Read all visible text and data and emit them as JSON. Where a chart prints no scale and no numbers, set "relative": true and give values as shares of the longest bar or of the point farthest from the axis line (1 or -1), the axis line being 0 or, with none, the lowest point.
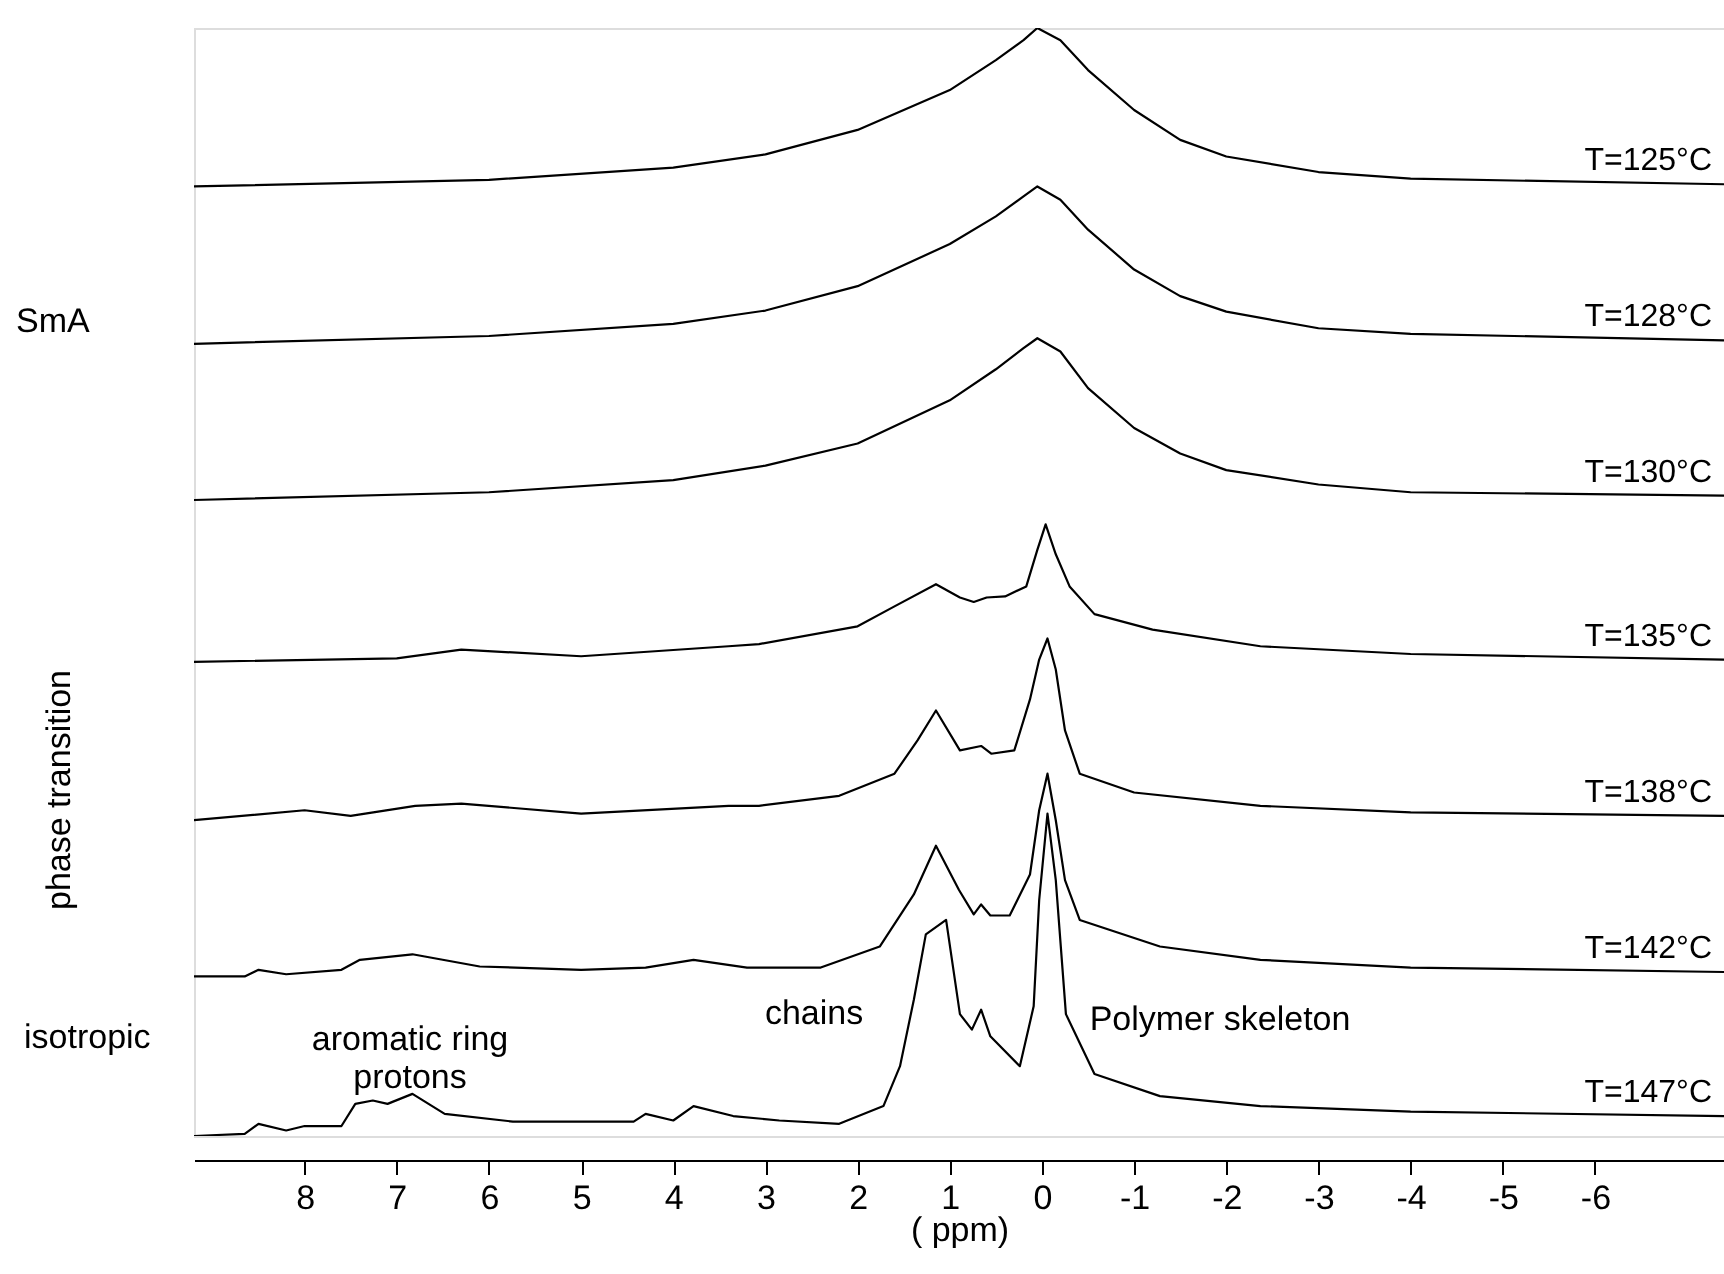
{
  "chart_data": {
    "type": "line",
    "relative": true,
    "xlabel": "( ppm)",
    "xlim": [
      9.2,
      -7.4
    ],
    "xticks": [
      8,
      7,
      6,
      5,
      4,
      3,
      2,
      1,
      0,
      -1,
      -2,
      -3,
      -4,
      -5,
      -6
    ],
    "grid": false,
    "marker": "none",
    "line_style": "solid",
    "series": [
      {
        "name": "T=125°C",
        "color": "#000000",
        "x": [
          9.2,
          6,
          4,
          3,
          2,
          1,
          0.5,
          0.2,
          0.05,
          -0.2,
          -0.5,
          -1,
          -1.5,
          -2,
          -3,
          -4,
          -7.4
        ],
        "values": [
          0.857,
          0.863,
          0.874,
          0.886,
          0.908,
          0.944,
          0.971,
          0.989,
          1.0,
          0.989,
          0.962,
          0.926,
          0.899,
          0.884,
          0.87,
          0.864,
          0.859
        ]
      },
      {
        "name": "T=128°C",
        "color": "#000000",
        "x": [
          9.2,
          6,
          4,
          3,
          2,
          1,
          0.5,
          0.2,
          0.05,
          -0.2,
          -0.5,
          -1,
          -1.5,
          -2,
          -3,
          -4,
          -7.4
        ],
        "values": [
          0.715,
          0.722,
          0.733,
          0.745,
          0.767,
          0.805,
          0.83,
          0.848,
          0.857,
          0.845,
          0.818,
          0.782,
          0.758,
          0.744,
          0.729,
          0.724,
          0.718
        ]
      },
      {
        "name": "T=130°C",
        "color": "#000000",
        "x": [
          9.2,
          6,
          4,
          3,
          2,
          1,
          0.5,
          0.2,
          0.05,
          -0.2,
          -0.5,
          -1,
          -1.5,
          -2,
          -3,
          -4,
          -7.4
        ],
        "values": [
          0.574,
          0.581,
          0.592,
          0.605,
          0.625,
          0.664,
          0.692,
          0.711,
          0.72,
          0.708,
          0.675,
          0.639,
          0.616,
          0.601,
          0.588,
          0.581,
          0.578
        ]
      },
      {
        "name": "T=135°C",
        "color": "#000000",
        "x": [
          9.2,
          7,
          6.3,
          5,
          3.4,
          3.07,
          2,
          1.6,
          1.15,
          0.89,
          0.74,
          0.6,
          0.4,
          0.17,
          0.05,
          -0.04,
          -0.15,
          -0.3,
          -0.57,
          -1.2,
          -2.37,
          -4,
          -7.4
        ],
        "values": [
          0.428,
          0.431,
          0.439,
          0.433,
          0.442,
          0.444,
          0.46,
          0.478,
          0.498,
          0.486,
          0.482,
          0.486,
          0.487,
          0.496,
          0.529,
          0.552,
          0.525,
          0.496,
          0.471,
          0.457,
          0.442,
          0.435,
          0.43
        ]
      },
      {
        "name": "T=138°C",
        "color": "#000000",
        "x": [
          9.2,
          8,
          7.5,
          6.8,
          6.3,
          5,
          3.4,
          3.07,
          2.2,
          1.6,
          1.35,
          1.15,
          0.89,
          0.66,
          0.55,
          0.3,
          0.13,
          0.03,
          -0.06,
          -0.15,
          -0.25,
          -0.41,
          -1,
          -2.37,
          -4,
          -7.4
        ],
        "values": [
          0.285,
          0.294,
          0.289,
          0.298,
          0.3,
          0.291,
          0.298,
          0.298,
          0.307,
          0.327,
          0.357,
          0.384,
          0.348,
          0.352,
          0.345,
          0.348,
          0.394,
          0.43,
          0.449,
          0.421,
          0.366,
          0.327,
          0.31,
          0.298,
          0.292,
          0.289
        ]
      },
      {
        "name": "T=142°C",
        "color": "#000000",
        "x": [
          9.2,
          8.65,
          8.5,
          8.2,
          7.6,
          7.4,
          6.83,
          6.1,
          5.0,
          4.3,
          3.78,
          3.2,
          2.4,
          1.76,
          1.39,
          1.15,
          0.9,
          0.74,
          0.66,
          0.56,
          0.35,
          0.13,
          0.03,
          -0.06,
          -0.15,
          -0.25,
          -0.41,
          -1.28,
          -2.37,
          -4,
          -7.4
        ],
        "values": [
          0.144,
          0.144,
          0.15,
          0.146,
          0.15,
          0.159,
          0.164,
          0.153,
          0.15,
          0.152,
          0.159,
          0.152,
          0.152,
          0.171,
          0.218,
          0.262,
          0.222,
          0.2,
          0.209,
          0.199,
          0.199,
          0.236,
          0.294,
          0.327,
          0.285,
          0.231,
          0.195,
          0.171,
          0.159,
          0.152,
          0.148
        ]
      },
      {
        "name": "T=147°C",
        "color": "#000000",
        "x": [
          9.2,
          8.65,
          8.5,
          8.2,
          8.0,
          7.6,
          7.45,
          7.26,
          7.1,
          6.83,
          6.48,
          5.74,
          4.43,
          4.3,
          4.0,
          3.78,
          3.35,
          2.85,
          2.2,
          1.72,
          1.54,
          1.39,
          1.26,
          1.04,
          0.89,
          0.76,
          0.66,
          0.56,
          0.24,
          0.09,
          0.03,
          -0.06,
          -0.15,
          -0.26,
          -0.57,
          -1.28,
          -2.37,
          -4,
          -7.4
        ],
        "values": [
          0,
          0.002,
          0.011,
          0.005,
          0.009,
          0.009,
          0.029,
          0.032,
          0.029,
          0.038,
          0.02,
          0.013,
          0.013,
          0.02,
          0.014,
          0.027,
          0.018,
          0.014,
          0.011,
          0.027,
          0.063,
          0.123,
          0.182,
          0.195,
          0.11,
          0.096,
          0.114,
          0.09,
          0.063,
          0.117,
          0.213,
          0.291,
          0.231,
          0.11,
          0.056,
          0.036,
          0.027,
          0.022,
          0.018
        ]
      }
    ],
    "annotations": [
      "aromatic ring\nprotons",
      "chains",
      "Polymer skeleton",
      "SmA",
      "phase transition",
      "isotropic"
    ]
  }
}
